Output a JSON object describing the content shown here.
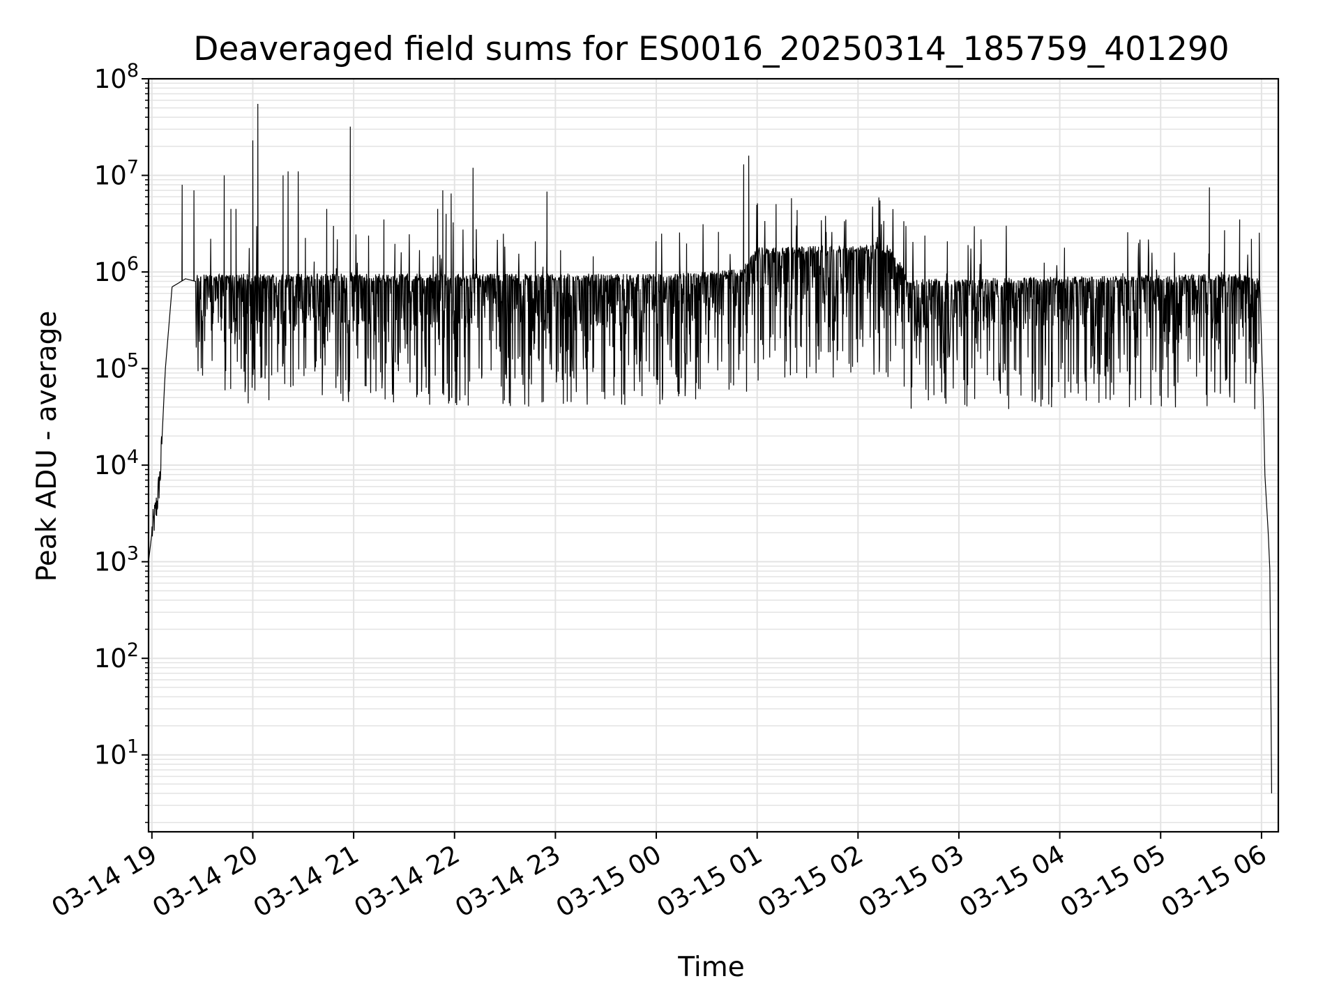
{
  "chart_data": {
    "type": "line",
    "title": "Deaveraged field sums for ES0016_20250314_185759_401290",
    "xlabel": "Time",
    "ylabel": "Peak ADU - average",
    "yscale": "log",
    "ylim": [
      1.6,
      100000000
    ],
    "xlim": [
      "03-14 18:58",
      "03-15 06:10"
    ],
    "grid": true,
    "line_color": "#000000",
    "x_ticks": [
      "03-14 19",
      "03-14 20",
      "03-14 21",
      "03-14 22",
      "03-14 23",
      "03-15 00",
      "03-15 01",
      "03-15 02",
      "03-15 03",
      "03-15 04",
      "03-15 05",
      "03-15 06"
    ],
    "y_ticks": [
      {
        "base": "10",
        "exp": "1",
        "value": 10
      },
      {
        "base": "10",
        "exp": "2",
        "value": 100
      },
      {
        "base": "10",
        "exp": "3",
        "value": 1000
      },
      {
        "base": "10",
        "exp": "4",
        "value": 10000
      },
      {
        "base": "10",
        "exp": "5",
        "value": 100000
      },
      {
        "base": "10",
        "exp": "6",
        "value": 1000000
      },
      {
        "base": "10",
        "exp": "7",
        "value": 10000000
      },
      {
        "base": "10",
        "exp": "8",
        "value": 100000000
      }
    ],
    "series": [
      {
        "envelope": [
          {
            "x": "03-14 18:58",
            "y": 1000
          },
          {
            "x": "03-14 19:00",
            "y": 2000
          },
          {
            "x": "03-14 19:03",
            "y": 4000
          },
          {
            "x": "03-14 19:05",
            "y": 8000
          },
          {
            "x": "03-14 19:08",
            "y": 100000
          },
          {
            "x": "03-14 19:12",
            "y": 700000
          },
          {
            "x": "03-14 19:20",
            "y": 850000
          },
          {
            "x": "03-14 19:26",
            "y": 800000
          },
          {
            "x": "03-15 00:10",
            "y": 800000
          },
          {
            "x": "03-15 00:50",
            "y": 900000
          },
          {
            "x": "03-15 01:00",
            "y": 1500000
          },
          {
            "x": "03-15 02:20",
            "y": 1600000
          },
          {
            "x": "03-15 02:30",
            "y": 700000
          },
          {
            "x": "03-15 05:50",
            "y": 800000
          },
          {
            "x": "03-15 05:59",
            "y": 700000
          },
          {
            "x": "03-15 06:01",
            "y": 50000
          },
          {
            "x": "03-15 06:02",
            "y": 8000
          },
          {
            "x": "03-15 06:04",
            "y": 2000
          },
          {
            "x": "03-15 06:05",
            "y": 800
          },
          {
            "x": "03-15 06:06",
            "y": 4
          }
        ],
        "spikes": [
          {
            "x": "03-14 19:18",
            "y": 8000000
          },
          {
            "x": "03-14 19:25",
            "y": 7000000
          },
          {
            "x": "03-14 19:43",
            "y": 10000000
          },
          {
            "x": "03-14 19:47",
            "y": 4500000
          },
          {
            "x": "03-14 19:50",
            "y": 4500000
          },
          {
            "x": "03-14 20:00",
            "y": 23000000
          },
          {
            "x": "03-14 20:03",
            "y": 55000000
          },
          {
            "x": "03-14 20:18",
            "y": 10000000
          },
          {
            "x": "03-14 20:21",
            "y": 11000000
          },
          {
            "x": "03-14 20:27",
            "y": 11000000
          },
          {
            "x": "03-14 20:44",
            "y": 4500000
          },
          {
            "x": "03-14 20:48",
            "y": 3000000
          },
          {
            "x": "03-14 20:58",
            "y": 32000000
          },
          {
            "x": "03-14 21:18",
            "y": 3500000
          },
          {
            "x": "03-14 21:50",
            "y": 4500000
          },
          {
            "x": "03-14 21:53",
            "y": 7000000
          },
          {
            "x": "03-14 21:55",
            "y": 4000000
          },
          {
            "x": "03-14 21:58",
            "y": 6500000
          },
          {
            "x": "03-14 22:11",
            "y": 12000000
          },
          {
            "x": "03-14 22:55",
            "y": 6800000
          },
          {
            "x": "03-15 00:37",
            "y": 2600000
          },
          {
            "x": "03-15 00:52",
            "y": 13000000
          },
          {
            "x": "03-15 00:55",
            "y": 16000000
          },
          {
            "x": "03-15 05:29",
            "y": 7500000
          },
          {
            "x": "03-15 05:38",
            "y": 2700000
          },
          {
            "x": "03-15 05:47",
            "y": 3500000
          },
          {
            "x": "03-15 05:54",
            "y": 2200000
          }
        ]
      }
    ]
  }
}
